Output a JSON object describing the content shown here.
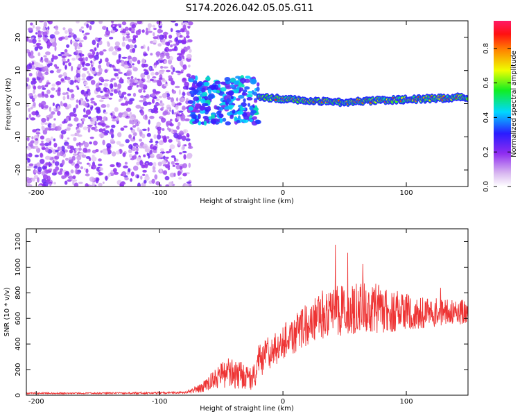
{
  "title": "S174.2026.042.05.05.G11",
  "colors": {
    "snr_line": "#ee3333",
    "axis": "#000000"
  },
  "chart_data": [
    {
      "type": "heatmap",
      "xlabel": "Height of straight line (km)",
      "ylabel": "Frequency (Hz)",
      "xlim": [
        -208,
        150
      ],
      "ylim": [
        -25,
        25
      ],
      "xticks": [
        -200,
        -100,
        0,
        100
      ],
      "xtick_labels": [
        "-200",
        "-100",
        "0",
        "100"
      ],
      "yticks": [
        -20,
        -10,
        0,
        10,
        20
      ],
      "ytick_labels": [
        "-20",
        "-10",
        "0",
        "10",
        "20"
      ],
      "colorbar": {
        "label": "Normalized spectral amplitude",
        "range": [
          0,
          0.96
        ],
        "ticks": [
          0,
          0.2,
          0.4,
          0.6,
          0.8
        ],
        "tick_labels": [
          "0.0",
          "0.2",
          "0.4",
          "0.6",
          "0.8"
        ]
      },
      "regions": [
        {
          "name": "noise",
          "x_range": [
            -208,
            -75
          ],
          "f_range": [
            -25,
            25
          ],
          "amplitude": [
            0.05,
            0.25
          ]
        },
        {
          "name": "transition",
          "x_range": [
            -75,
            -20
          ],
          "f_range": [
            -6,
            8
          ],
          "amplitude": [
            0.2,
            0.5
          ]
        },
        {
          "name": "signal",
          "x_range": [
            -20,
            150
          ],
          "f_center": [
            2,
            1,
            0.5,
            1,
            1.5,
            2
          ],
          "amplitude": [
            0.6,
            0.96
          ]
        }
      ]
    },
    {
      "type": "line",
      "xlabel": "Height of straight line (km)",
      "ylabel": "SNR (10 * v/v)",
      "xlim": [
        -208,
        150
      ],
      "ylim": [
        0,
        1300
      ],
      "xticks": [
        -200,
        -100,
        0,
        100
      ],
      "xtick_labels": [
        "-200",
        "-100",
        "0",
        "100"
      ],
      "yticks": [
        0,
        200,
        400,
        600,
        800,
        1000,
        1200
      ],
      "ytick_labels": [
        "0",
        "200",
        "400",
        "600",
        "800",
        "1000",
        "1200"
      ],
      "series": [
        {
          "name": "SNR",
          "envelope_x": [
            -208,
            -150,
            -100,
            -80,
            -65,
            -55,
            -45,
            -35,
            -25,
            -20,
            -15,
            -10,
            -5,
            0,
            10,
            20,
            30,
            40,
            50,
            60,
            70,
            80,
            90,
            100,
            120,
            150
          ],
          "envelope_mean": [
            15,
            15,
            18,
            20,
            60,
            130,
            170,
            160,
            120,
            250,
            300,
            330,
            360,
            420,
            480,
            560,
            620,
            650,
            660,
            680,
            690,
            670,
            660,
            650,
            640,
            650
          ],
          "envelope_spread": [
            6,
            6,
            8,
            8,
            40,
            80,
            120,
            110,
            80,
            140,
            150,
            140,
            130,
            140,
            150,
            170,
            190,
            200,
            200,
            200,
            210,
            190,
            170,
            140,
            110,
            100
          ]
        }
      ]
    }
  ]
}
